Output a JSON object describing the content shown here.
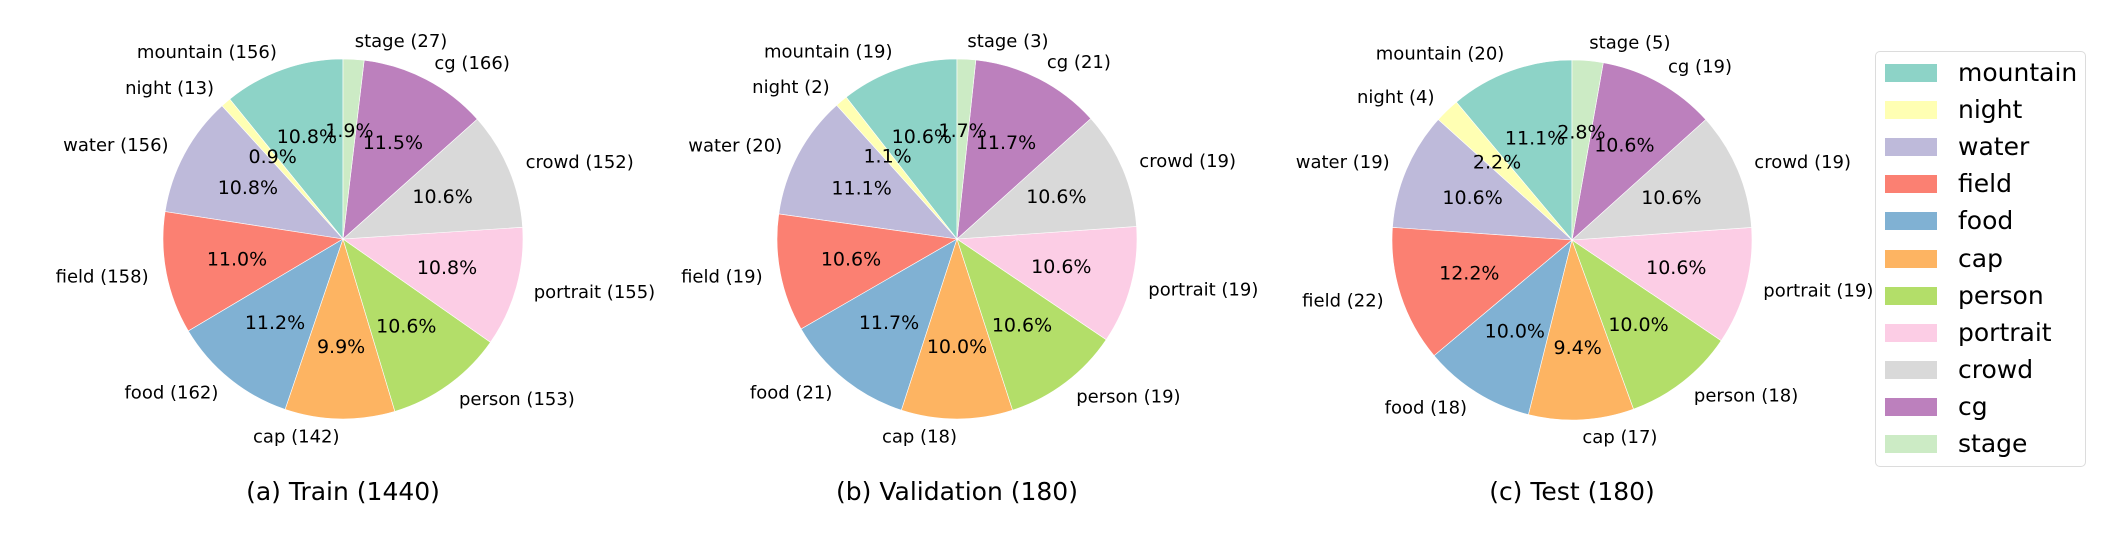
{
  "chart_data": {
    "type": "pie",
    "start_angle_deg": 90,
    "direction": "counterclockwise",
    "categories": [
      "mountain",
      "night",
      "water",
      "field",
      "food",
      "cap",
      "person",
      "portrait",
      "crowd",
      "cg",
      "stage"
    ],
    "colors": {
      "mountain": "#8dd3c7",
      "night": "#ffffb3",
      "water": "#bebada",
      "field": "#fb8072",
      "food": "#80b1d3",
      "cap": "#fdb462",
      "person": "#b3de69",
      "portrait": "#fccde5",
      "crowd": "#d9d9d9",
      "cg": "#bc80bd",
      "stage": "#ccebc5"
    },
    "subplots": [
      {
        "title": "(a) Train (1440)",
        "total": 1440,
        "values": [
          156,
          13,
          156,
          158,
          162,
          142,
          153,
          155,
          152,
          166,
          27
        ],
        "labels": [
          "mountain (156)",
          "night (13)",
          "water (156)",
          "field (158)",
          "food (162)",
          "cap (142)",
          "person (153)",
          "portrait (155)",
          "crowd (152)",
          "cg (166)",
          "stage (27)"
        ],
        "percent_labels": [
          "10.8%",
          "0.9%",
          "10.8%",
          "11.0%",
          "11.2%",
          "9.9%",
          "10.6%",
          "10.8%",
          "10.6%",
          "11.5%",
          "1.9%"
        ]
      },
      {
        "title": "(b) Validation (180)",
        "total": 180,
        "values": [
          19,
          2,
          20,
          19,
          21,
          18,
          19,
          19,
          19,
          21,
          3
        ],
        "labels": [
          "mountain (19)",
          "night (2)",
          "water (20)",
          "field (19)",
          "food (21)",
          "cap (18)",
          "person (19)",
          "portrait (19)",
          "crowd (19)",
          "cg (21)",
          "stage (3)"
        ],
        "percent_labels": [
          "10.6%",
          "1.1%",
          "11.1%",
          "10.6%",
          "11.7%",
          "10.0%",
          "10.6%",
          "10.6%",
          "10.6%",
          "11.7%",
          "1.7%"
        ]
      },
      {
        "title": "(c) Test (180)",
        "total": 180,
        "values": [
          20,
          4,
          19,
          22,
          18,
          17,
          18,
          19,
          19,
          19,
          5
        ],
        "labels": [
          "mountain (20)",
          "night (4)",
          "water (19)",
          "field (22)",
          "food (18)",
          "cap (17)",
          "person (18)",
          "portrait (19)",
          "crowd (19)",
          "cg (19)",
          "stage (5)"
        ],
        "percent_labels": [
          "11.1%",
          "2.2%",
          "10.6%",
          "12.2%",
          "10.0%",
          "9.4%",
          "10.0%",
          "10.6%",
          "10.6%",
          "10.6%",
          "2.8%"
        ]
      }
    ],
    "legend": {
      "position": "right",
      "entries": [
        "mountain",
        "night",
        "water",
        "field",
        "food",
        "cap",
        "person",
        "portrait",
        "crowd",
        "cg",
        "stage"
      ]
    }
  }
}
